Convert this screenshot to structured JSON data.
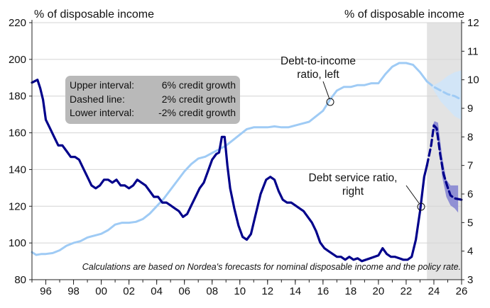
{
  "chart_data": {
    "type": "line",
    "left_axis_title": "% of disposable income",
    "right_axis_title": "% of disposable income",
    "left_ylim": [
      80,
      220
    ],
    "right_ylim": [
      3,
      12
    ],
    "left_ticks": [
      "80",
      "100",
      "120",
      "140",
      "160",
      "180",
      "200",
      "220"
    ],
    "right_ticks": [
      "3",
      "4",
      "5",
      "6",
      "7",
      "8",
      "9",
      "10",
      "11",
      "12"
    ],
    "x_ticks": [
      "96",
      "98",
      "00",
      "02",
      "04",
      "06",
      "08",
      "10",
      "12",
      "14",
      "16",
      "18",
      "20",
      "22",
      "24",
      "26"
    ],
    "forecast_shading": [
      2023.5,
      2026
    ],
    "legend": {
      "rows": [
        {
          "label": "Upper interval:",
          "value": "6% credit growth"
        },
        {
          "label": "Dashed line:",
          "value": "2% credit growth"
        },
        {
          "label": "Lower interval:",
          "value": "-2% credit growth"
        }
      ]
    },
    "annotations": {
      "debt_to_income": [
        "Debt-to-income",
        "ratio, left"
      ],
      "debt_service": [
        "Debt service ratio,",
        "right"
      ]
    },
    "footnote": "Calculations are based on Nordea's forecasts for nominal disposable income and the policy rate.",
    "series": [
      {
        "axis": "left",
        "color": "#9fcbf5",
        "points": [
          [
            1995.0,
            95
          ],
          [
            1995.3,
            93.5
          ],
          [
            1995.7,
            94
          ],
          [
            1996.0,
            94
          ],
          [
            1996.5,
            94.5
          ],
          [
            1997.0,
            96
          ],
          [
            1997.5,
            98.5
          ],
          [
            1998.0,
            100
          ],
          [
            1998.5,
            101
          ],
          [
            1999.0,
            103
          ],
          [
            1999.5,
            104
          ],
          [
            2000.0,
            105
          ],
          [
            2000.5,
            107
          ],
          [
            2001.0,
            110
          ],
          [
            2001.5,
            111
          ],
          [
            2002.0,
            111
          ],
          [
            2002.5,
            111.5
          ],
          [
            2003.0,
            113
          ],
          [
            2003.5,
            116
          ],
          [
            2004.0,
            120
          ],
          [
            2004.5,
            124
          ],
          [
            2005.0,
            129
          ],
          [
            2005.5,
            134
          ],
          [
            2006.0,
            139
          ],
          [
            2006.5,
            143
          ],
          [
            2007.0,
            146
          ],
          [
            2007.5,
            147
          ],
          [
            2008.0,
            149
          ],
          [
            2008.5,
            151
          ],
          [
            2009.0,
            153
          ],
          [
            2009.5,
            156
          ],
          [
            2010.0,
            159
          ],
          [
            2010.5,
            162
          ],
          [
            2011.0,
            163
          ],
          [
            2011.5,
            163
          ],
          [
            2012.0,
            163
          ],
          [
            2012.5,
            163.5
          ],
          [
            2013.0,
            163
          ],
          [
            2013.5,
            163
          ],
          [
            2014.0,
            164
          ],
          [
            2014.5,
            165
          ],
          [
            2015.0,
            166
          ],
          [
            2015.5,
            169
          ],
          [
            2016.0,
            172
          ],
          [
            2016.5,
            178
          ],
          [
            2017.0,
            183
          ],
          [
            2017.5,
            185
          ],
          [
            2018.0,
            185
          ],
          [
            2018.5,
            186
          ],
          [
            2019.0,
            186
          ],
          [
            2019.5,
            187
          ],
          [
            2020.0,
            187
          ],
          [
            2020.5,
            192
          ],
          [
            2021.0,
            196
          ],
          [
            2021.5,
            198
          ],
          [
            2022.0,
            198
          ],
          [
            2022.5,
            197
          ],
          [
            2023.0,
            193
          ],
          [
            2023.5,
            188
          ]
        ]
      },
      {
        "axis": "left",
        "color": "#9fcbf5",
        "dashed": true,
        "points": [
          [
            2023.5,
            188
          ],
          [
            2024.0,
            185
          ],
          [
            2024.5,
            183
          ],
          [
            2025.0,
            181
          ],
          [
            2025.5,
            180
          ],
          [
            2026.0,
            178
          ]
        ],
        "upper": [
          [
            2023.5,
            188
          ],
          [
            2024.0,
            186
          ],
          [
            2024.5,
            188
          ],
          [
            2025.0,
            191
          ],
          [
            2025.5,
            193
          ],
          [
            2026.0,
            194
          ]
        ],
        "lower": [
          [
            2023.5,
            188
          ],
          [
            2024.0,
            183
          ],
          [
            2024.5,
            177
          ],
          [
            2025.0,
            173
          ],
          [
            2025.5,
            169
          ],
          [
            2026.0,
            167
          ]
        ]
      },
      {
        "axis": "right",
        "color": "#00008b",
        "points": [
          [
            1995.0,
            9.9
          ],
          [
            1995.4,
            10.0
          ],
          [
            1995.6,
            9.7
          ],
          [
            1995.8,
            9.3
          ],
          [
            1996.0,
            8.6
          ],
          [
            1996.3,
            8.3
          ],
          [
            1996.6,
            8.0
          ],
          [
            1996.9,
            7.7
          ],
          [
            1997.2,
            7.7
          ],
          [
            1997.5,
            7.5
          ],
          [
            1997.8,
            7.3
          ],
          [
            1998.1,
            7.3
          ],
          [
            1998.4,
            7.2
          ],
          [
            1998.7,
            6.9
          ],
          [
            1999.0,
            6.6
          ],
          [
            1999.3,
            6.3
          ],
          [
            1999.6,
            6.2
          ],
          [
            1999.9,
            6.3
          ],
          [
            2000.2,
            6.5
          ],
          [
            2000.5,
            6.5
          ],
          [
            2000.8,
            6.4
          ],
          [
            2001.1,
            6.5
          ],
          [
            2001.4,
            6.3
          ],
          [
            2001.7,
            6.3
          ],
          [
            2002.0,
            6.2
          ],
          [
            2002.3,
            6.3
          ],
          [
            2002.6,
            6.5
          ],
          [
            2002.9,
            6.4
          ],
          [
            2003.2,
            6.3
          ],
          [
            2003.5,
            6.1
          ],
          [
            2003.8,
            5.9
          ],
          [
            2004.1,
            5.9
          ],
          [
            2004.4,
            5.7
          ],
          [
            2004.7,
            5.7
          ],
          [
            2005.0,
            5.6
          ],
          [
            2005.3,
            5.5
          ],
          [
            2005.6,
            5.4
          ],
          [
            2005.9,
            5.2
          ],
          [
            2006.2,
            5.3
          ],
          [
            2006.5,
            5.6
          ],
          [
            2006.8,
            5.9
          ],
          [
            2007.1,
            6.2
          ],
          [
            2007.4,
            6.4
          ],
          [
            2007.7,
            6.8
          ],
          [
            2008.0,
            7.2
          ],
          [
            2008.3,
            7.4
          ],
          [
            2008.5,
            7.45
          ],
          [
            2008.7,
            8.0
          ],
          [
            2008.9,
            8.0
          ],
          [
            2009.1,
            7.0
          ],
          [
            2009.3,
            6.2
          ],
          [
            2009.6,
            5.5
          ],
          [
            2009.9,
            4.9
          ],
          [
            2010.2,
            4.5
          ],
          [
            2010.5,
            4.4
          ],
          [
            2010.8,
            4.6
          ],
          [
            2011.1,
            5.2
          ],
          [
            2011.5,
            6.0
          ],
          [
            2011.9,
            6.5
          ],
          [
            2012.2,
            6.6
          ],
          [
            2012.5,
            6.5
          ],
          [
            2012.8,
            6.1
          ],
          [
            2013.1,
            5.8
          ],
          [
            2013.4,
            5.7
          ],
          [
            2013.7,
            5.7
          ],
          [
            2014.0,
            5.6
          ],
          [
            2014.3,
            5.5
          ],
          [
            2014.6,
            5.4
          ],
          [
            2014.9,
            5.2
          ],
          [
            2015.2,
            5.0
          ],
          [
            2015.5,
            4.7
          ],
          [
            2015.8,
            4.3
          ],
          [
            2016.1,
            4.1
          ],
          [
            2016.4,
            4.0
          ],
          [
            2016.7,
            3.9
          ],
          [
            2017.0,
            3.8
          ],
          [
            2017.3,
            3.8
          ],
          [
            2017.6,
            3.7
          ],
          [
            2017.9,
            3.8
          ],
          [
            2018.2,
            3.7
          ],
          [
            2018.5,
            3.75
          ],
          [
            2018.8,
            3.65
          ],
          [
            2019.1,
            3.7
          ],
          [
            2019.4,
            3.75
          ],
          [
            2019.7,
            3.8
          ],
          [
            2020.0,
            3.85
          ],
          [
            2020.3,
            4.1
          ],
          [
            2020.6,
            3.9
          ],
          [
            2020.9,
            3.8
          ],
          [
            2021.2,
            3.8
          ],
          [
            2021.5,
            3.75
          ],
          [
            2021.8,
            3.7
          ],
          [
            2022.1,
            3.7
          ],
          [
            2022.4,
            3.8
          ],
          [
            2022.7,
            4.4
          ],
          [
            2023.0,
            5.4
          ],
          [
            2023.3,
            6.6
          ],
          [
            2023.5,
            7.0
          ]
        ]
      },
      {
        "axis": "right",
        "color": "#00008b",
        "dashed": true,
        "points": [
          [
            2023.5,
            7.0
          ],
          [
            2023.8,
            7.7
          ],
          [
            2024.0,
            8.4
          ],
          [
            2024.2,
            8.3
          ],
          [
            2024.45,
            7.4
          ],
          [
            2024.7,
            6.7
          ],
          [
            2024.95,
            6.3
          ],
          [
            2025.2,
            5.95
          ],
          [
            2025.5,
            5.85
          ],
          [
            2026.0,
            5.8
          ]
        ],
        "upper": [
          [
            2023.9,
            8.4
          ],
          [
            2024.05,
            8.55
          ],
          [
            2024.3,
            8.5
          ],
          [
            2024.6,
            7.3
          ],
          [
            2024.9,
            6.5
          ],
          [
            2025.2,
            6.3
          ],
          [
            2025.5,
            6.3
          ],
          [
            2025.75,
            6.3
          ]
        ],
        "lower": [
          [
            2025.75,
            5.35
          ],
          [
            2025.5,
            5.5
          ],
          [
            2025.2,
            5.6
          ],
          [
            2024.9,
            5.9
          ],
          [
            2024.6,
            6.6
          ],
          [
            2024.3,
            7.9
          ],
          [
            2024.05,
            8.25
          ],
          [
            2023.9,
            8.4
          ]
        ]
      }
    ]
  }
}
